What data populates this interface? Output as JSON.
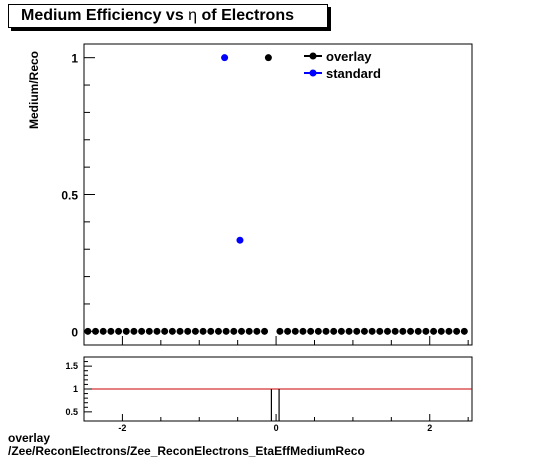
{
  "title": {
    "prefix": "Medium Efficiency vs ",
    "symbol": "η",
    "suffix": " of Electrons"
  },
  "footer": {
    "line1": "overlay",
    "line2": "/Zee/ReconElectrons/Zee_ReconElectrons_EtaEffMediumReco"
  },
  "chart_data": [
    {
      "type": "scatter",
      "ylabel": "Medium/Reco",
      "xlim": [
        -2.5,
        2.55
      ],
      "ylim": [
        -0.05,
        1.05
      ],
      "y_tick_labels": [
        "0",
        "0.5",
        "1"
      ],
      "y_ticks": [
        0,
        0.5,
        1
      ],
      "legend_placement": "top-right",
      "colors": {
        "overlay": "#000000",
        "standard": "#0000ff"
      },
      "series": [
        {
          "name": "overlay",
          "points": [
            [
              -2.45,
              0
            ],
            [
              -2.35,
              0
            ],
            [
              -2.25,
              0
            ],
            [
              -2.15,
              0
            ],
            [
              -2.05,
              0
            ],
            [
              -1.95,
              0
            ],
            [
              -1.85,
              0
            ],
            [
              -1.75,
              0
            ],
            [
              -1.65,
              0
            ],
            [
              -1.55,
              0
            ],
            [
              -1.45,
              0
            ],
            [
              -1.35,
              0
            ],
            [
              -1.25,
              0
            ],
            [
              -1.15,
              0
            ],
            [
              -1.05,
              0
            ],
            [
              -0.95,
              0
            ],
            [
              -0.85,
              0
            ],
            [
              -0.75,
              0
            ],
            [
              -0.65,
              0
            ],
            [
              -0.55,
              0
            ],
            [
              -0.45,
              0
            ],
            [
              -0.35,
              0
            ],
            [
              -0.25,
              0
            ],
            [
              -0.15,
              0
            ],
            [
              -0.1,
              1
            ],
            [
              0.05,
              0
            ],
            [
              0.15,
              0
            ],
            [
              0.25,
              0
            ],
            [
              0.35,
              0
            ],
            [
              0.45,
              0
            ],
            [
              0.55,
              0
            ],
            [
              0.65,
              0
            ],
            [
              0.75,
              0
            ],
            [
              0.85,
              0
            ],
            [
              0.95,
              0
            ],
            [
              1.05,
              0
            ],
            [
              1.15,
              0
            ],
            [
              1.25,
              0
            ],
            [
              1.35,
              0
            ],
            [
              1.45,
              0
            ],
            [
              1.55,
              0
            ],
            [
              1.65,
              0
            ],
            [
              1.75,
              0
            ],
            [
              1.85,
              0
            ],
            [
              1.95,
              0
            ],
            [
              2.05,
              0
            ],
            [
              2.15,
              0
            ],
            [
              2.25,
              0
            ],
            [
              2.35,
              0
            ],
            [
              2.45,
              0
            ]
          ]
        },
        {
          "name": "standard",
          "points": [
            [
              -0.67,
              1
            ],
            [
              -0.47,
              0.333
            ]
          ]
        }
      ]
    },
    {
      "type": "line",
      "xlim": [
        -2.5,
        2.55
      ],
      "ylim": [
        0.3,
        1.7
      ],
      "x_tick_labels": [
        "-2",
        "0",
        "2"
      ],
      "x_ticks": [
        -2,
        0,
        2
      ],
      "y_tick_labels": [
        "0.5",
        "1",
        "1.5"
      ],
      "y_ticks": [
        0.5,
        1,
        1.5
      ],
      "reference_line": {
        "y": 1,
        "color": "#cc0000"
      },
      "spikes": [
        -0.1,
        0.0
      ]
    }
  ]
}
